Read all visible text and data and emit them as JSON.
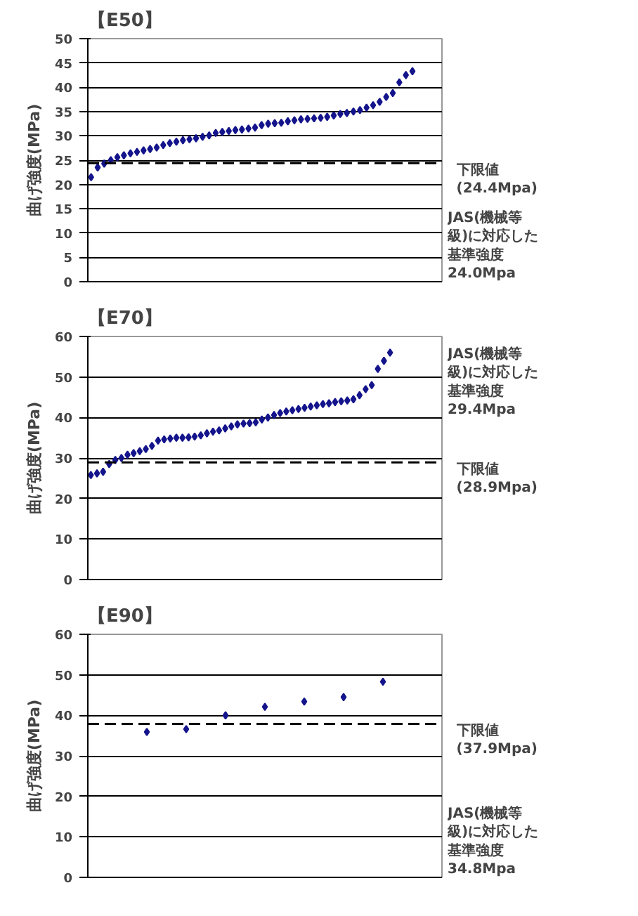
{
  "chart_data": [
    {
      "type": "scatter",
      "title": "【E50】",
      "ylabel": "曲げ強度(MPa)",
      "marker": "diamond",
      "color": "#14148c",
      "grid": "y",
      "tick_labels": "y",
      "categories": [
        null,
        null,
        null,
        null,
        null,
        null,
        null,
        null,
        null,
        null,
        null,
        null,
        null,
        null,
        null,
        null,
        null,
        null,
        null,
        null,
        null,
        null,
        null,
        null,
        null,
        null,
        null,
        null,
        null,
        null,
        null,
        null,
        null,
        null,
        null,
        null,
        null,
        null,
        null,
        null,
        null,
        null,
        null,
        null,
        null,
        null,
        null,
        null,
        null,
        null,
        null,
        null,
        null,
        null
      ],
      "values": [
        21.5,
        23.5,
        24.3,
        25,
        25.6,
        26,
        26.4,
        26.7,
        27,
        27.3,
        27.6,
        28.1,
        28.5,
        28.8,
        29.1,
        29.3,
        29.5,
        29.8,
        30.1,
        30.6,
        30.8,
        31,
        31.2,
        31.3,
        31.5,
        31.7,
        32.2,
        32.5,
        32.6,
        32.7,
        33,
        33.2,
        33.4,
        33.5,
        33.6,
        33.7,
        33.9,
        34.2,
        34.5,
        34.7,
        35,
        35.3,
        35.8,
        36.3,
        37,
        38,
        38.8,
        41,
        42.5,
        43.3,
        null,
        null,
        null,
        null
      ],
      "ylim": [
        0,
        50
      ],
      "yticks": [
        0,
        5,
        10,
        15,
        20,
        25,
        30,
        35,
        40,
        45,
        50
      ],
      "ref_lines": [
        {
          "axis": "y",
          "value": 24.4,
          "label": "下限値\n(24.4Mpa)",
          "line_style": "dashed",
          "color": "#000000"
        }
      ],
      "annotations": [
        "JAS(機械等級)に対応した基準強度\n24.0Mpa"
      ]
    },
    {
      "type": "scatter",
      "title": "【E70】",
      "ylabel": "曲げ強度(MPa)",
      "marker": "diamond",
      "color": "#14148c",
      "grid": "y",
      "tick_labels": "y",
      "categories": [
        null,
        null,
        null,
        null,
        null,
        null,
        null,
        null,
        null,
        null,
        null,
        null,
        null,
        null,
        null,
        null,
        null,
        null,
        null,
        null,
        null,
        null,
        null,
        null,
        null,
        null,
        null,
        null,
        null,
        null,
        null,
        null,
        null,
        null,
        null,
        null,
        null,
        null,
        null,
        null,
        null,
        null,
        null,
        null,
        null,
        null,
        null,
        null,
        null,
        null,
        null,
        null,
        null,
        null,
        null,
        null,
        null,
        null
      ],
      "values": [
        25.8,
        26.2,
        26.6,
        28.5,
        29.5,
        30,
        30.8,
        31.2,
        31.7,
        32.2,
        33,
        34.3,
        34.6,
        34.8,
        35,
        35,
        35.1,
        35.3,
        35.6,
        36.1,
        36.5,
        36.8,
        37.3,
        37.8,
        38.3,
        38.5,
        38.6,
        38.8,
        39.5,
        40,
        40.6,
        41.1,
        41.5,
        41.8,
        42.1,
        42.4,
        42.7,
        43,
        43.3,
        43.5,
        43.8,
        44,
        44.2,
        44.5,
        45.5,
        47,
        48,
        52,
        54,
        56,
        null,
        null,
        null,
        null,
        null,
        null,
        null,
        null
      ],
      "ylim": [
        0,
        60
      ],
      "yticks": [
        0,
        10,
        20,
        30,
        40,
        50,
        60
      ],
      "ref_lines": [
        {
          "axis": "y",
          "value": 28.9,
          "label": "下限値\n(28.9Mpa)",
          "line_style": "dashed",
          "color": "#000000"
        }
      ],
      "annotations": [
        "JAS(機械等級)に対応した基準強度\n29.4Mpa"
      ]
    },
    {
      "type": "scatter",
      "title": "【E90】",
      "ylabel": "曲げ強度(MPa)",
      "marker": "diamond",
      "color": "#14148c",
      "grid": "y",
      "tick_labels": "y",
      "categories": [
        null,
        null,
        null,
        null,
        null,
        null,
        null,
        null,
        null
      ],
      "values": [
        null,
        35.9,
        36.6,
        40.0,
        42.1,
        43.4,
        44.5,
        48.3,
        null
      ],
      "ylim": [
        0,
        60
      ],
      "yticks": [
        0,
        10,
        20,
        30,
        40,
        50,
        60
      ],
      "ref_lines": [
        {
          "axis": "y",
          "value": 37.9,
          "label": "下限値\n(37.9Mpa)",
          "line_style": "dashed",
          "color": "#000000"
        }
      ],
      "annotations": [
        "JAS(機械等級)に対応した基準強度\n34.8Mpa"
      ]
    }
  ]
}
